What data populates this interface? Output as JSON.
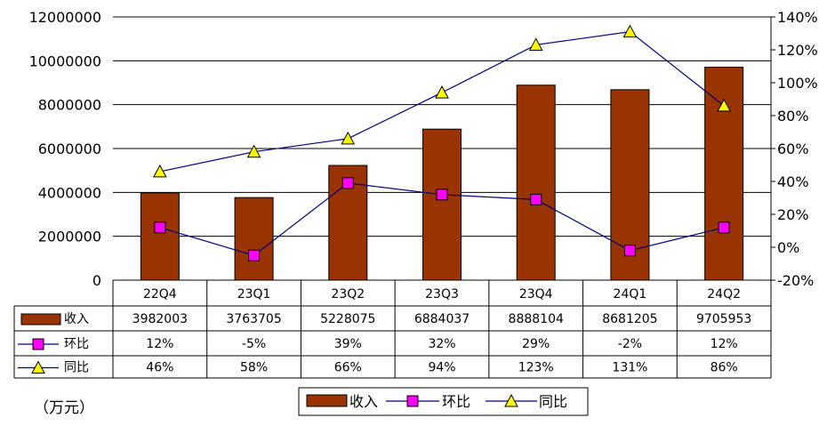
{
  "chart_data": {
    "type": "bar",
    "categories": [
      "22Q4",
      "23Q1",
      "23Q2",
      "23Q3",
      "23Q4",
      "24Q1",
      "24Q2"
    ],
    "series": [
      {
        "name": "收入",
        "kind": "bar",
        "axis": "left",
        "values": [
          3982003,
          3763705,
          5228075,
          6884037,
          8888104,
          8681205,
          9705953
        ],
        "labels": [
          "3982003",
          "3763705",
          "5228075",
          "6884037",
          "8888104",
          "8681205",
          "9705953"
        ]
      },
      {
        "name": "环比",
        "kind": "line",
        "marker": "square",
        "axis": "right",
        "values": [
          12,
          -5,
          39,
          32,
          29,
          -2,
          12
        ],
        "labels": [
          "12%",
          "-5%",
          "39%",
          "32%",
          "29%",
          "-2%",
          "12%"
        ]
      },
      {
        "name": "同比",
        "kind": "line",
        "marker": "triangle",
        "axis": "right",
        "values": [
          46,
          58,
          66,
          94,
          123,
          131,
          86
        ],
        "labels": [
          "46%",
          "58%",
          "66%",
          "94%",
          "123%",
          "131%",
          "86%"
        ]
      }
    ],
    "y_left": {
      "min": 0,
      "max": 12000000,
      "step": 2000000,
      "ticks": [
        "0",
        "2000000",
        "4000000",
        "6000000",
        "8000000",
        "10000000",
        "12000000"
      ]
    },
    "y_right": {
      "min": -20,
      "max": 140,
      "step": 20,
      "ticks": [
        "-20%",
        "0%",
        "20%",
        "40%",
        "60%",
        "80%",
        "100%",
        "120%",
        "140%"
      ]
    },
    "unit_label": "（万元）",
    "legend": {
      "position": "bottom-center",
      "entries": [
        "收入",
        "环比",
        "同比"
      ]
    },
    "colors": {
      "bar": "#993300",
      "mom_line": "#000080",
      "mom_marker": "#ff00ff",
      "yoy_line": "#000080",
      "yoy_marker": "#ffff00",
      "grid": "#000000"
    }
  }
}
